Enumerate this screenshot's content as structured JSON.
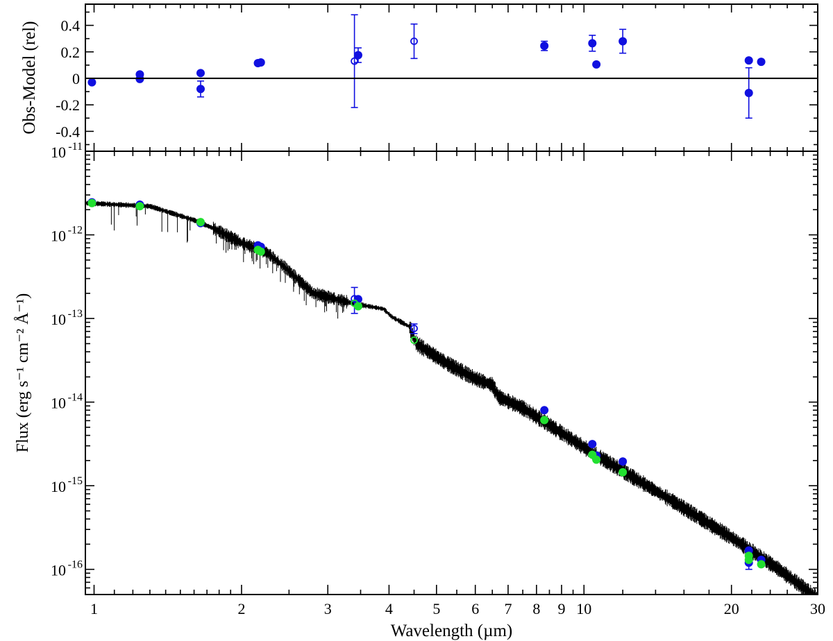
{
  "chart_data": [
    {
      "type": "scatter",
      "panel": "residuals",
      "ylabel": "Obs-Model (rel)",
      "xscale": "log",
      "xlim": [
        0.96,
        30
      ],
      "ylim": [
        -0.55,
        0.56
      ],
      "yticks": [
        0.4,
        0.2,
        0,
        -0.2,
        -0.4
      ],
      "ytick_labels": [
        "0.4",
        "0.2",
        "0",
        "-0.2",
        "-0.4"
      ],
      "zero_line": true,
      "grid": false,
      "color": "#1010e0",
      "points": [
        {
          "x": 0.99,
          "y": -0.03
        },
        {
          "x": 1.24,
          "y": 0.03
        },
        {
          "x": 1.24,
          "y": -0.005
        },
        {
          "x": 1.65,
          "y": 0.04
        },
        {
          "x": 1.65,
          "y": -0.08,
          "err": 0.06
        },
        {
          "x": 2.16,
          "y": 0.115
        },
        {
          "x": 2.19,
          "y": 0.12
        },
        {
          "x": 3.4,
          "y": 0.13,
          "err": 0.35,
          "open": true
        },
        {
          "x": 3.46,
          "y": 0.175,
          "err": 0.055
        },
        {
          "x": 4.5,
          "y": 0.28,
          "err": 0.13,
          "open": true
        },
        {
          "x": 8.3,
          "y": 0.245,
          "err": 0.035
        },
        {
          "x": 10.4,
          "y": 0.265,
          "err": 0.06
        },
        {
          "x": 10.6,
          "y": 0.105
        },
        {
          "x": 12.0,
          "y": 0.28,
          "err": 0.09
        },
        {
          "x": 21.7,
          "y": 0.135
        },
        {
          "x": 21.7,
          "y": -0.11,
          "err": 0.19
        },
        {
          "x": 23.0,
          "y": 0.125
        }
      ]
    },
    {
      "type": "line",
      "panel": "sed",
      "xlabel": "Wavelength (µm)",
      "ylabel": "Flux (erg s⁻¹ cm⁻² Å⁻¹)",
      "xscale": "log",
      "yscale": "log",
      "xlim": [
        0.96,
        30
      ],
      "ylim": [
        5e-17,
        1e-11
      ],
      "xticks": [
        1,
        2,
        3,
        4,
        5,
        6,
        7,
        8,
        9,
        10,
        20,
        30
      ],
      "xtick_labels": [
        "1",
        "2",
        "3",
        "4",
        "5",
        "6",
        "7",
        "8",
        "9",
        "10",
        "20",
        "30"
      ],
      "ytick_mantissa": "10",
      "ytick_exponents": [
        "-11",
        "-12",
        "-13",
        "-14",
        "-15",
        "-16"
      ],
      "grid": false,
      "series": [
        {
          "kind": "model",
          "color": "#000000",
          "x": [
            0.96,
            1.3,
            1.6,
            1.75,
            2.0,
            2.25,
            2.45,
            2.8,
            3.4,
            3.9,
            4.05,
            4.4,
            4.55,
            5.2,
            6.0,
            6.5,
            6.7,
            7.5,
            8.3,
            10.5,
            15.0,
            20.0,
            25.0,
            30.0
          ],
          "y": [
            2.4e-12,
            2.2e-12,
            1.5e-12,
            1.2e-12,
            8e-13,
            6.2e-13,
            4.1e-13,
            2e-13,
            1.5e-13,
            1.3e-13,
            1.05e-13,
            8e-14,
            5e-14,
            3e-14,
            1.9e-14,
            1.6e-14,
            1.15e-14,
            8.5e-15,
            5.8e-15,
            2.4e-15,
            6.8e-16,
            2.4e-16,
            1e-16,
            4.5e-17
          ]
        },
        {
          "kind": "observed",
          "color": "#1010e0",
          "points": [
            {
              "x": 0.99,
              "y": 2.45e-12
            },
            {
              "x": 1.24,
              "y": 2.3e-12
            },
            {
              "x": 1.65,
              "y": 1.38e-12
            },
            {
              "x": 2.16,
              "y": 7.5e-13
            },
            {
              "x": 2.19,
              "y": 7.2e-13
            },
            {
              "x": 3.4,
              "y": 1.72e-13,
              "err_lo": 1.15e-13,
              "err_hi": 2.35e-13,
              "open": true
            },
            {
              "x": 3.46,
              "y": 1.7e-13
            },
            {
              "x": 4.5,
              "y": 7.6e-14,
              "err_lo": 6.6e-14,
              "err_hi": 8.6e-14,
              "open": true
            },
            {
              "x": 8.3,
              "y": 8e-15
            },
            {
              "x": 10.4,
              "y": 3.15e-15
            },
            {
              "x": 10.6,
              "y": 2.3e-15
            },
            {
              "x": 12.0,
              "y": 1.95e-15
            },
            {
              "x": 21.7,
              "y": 1.68e-16
            },
            {
              "x": 21.7,
              "y": 1.2e-16,
              "err_lo": 1e-16,
              "err_hi": 1.45e-16
            },
            {
              "x": 23.0,
              "y": 1.3e-16
            }
          ]
        },
        {
          "kind": "synthetic",
          "color": "#22e030",
          "points": [
            {
              "x": 0.99,
              "y": 2.4e-12
            },
            {
              "x": 1.24,
              "y": 2.2e-12
            },
            {
              "x": 1.65,
              "y": 1.42e-12
            },
            {
              "x": 2.16,
              "y": 6.6e-13
            },
            {
              "x": 2.19,
              "y": 6.3e-13
            },
            {
              "x": 3.4,
              "y": 1.52e-13,
              "open": true
            },
            {
              "x": 3.46,
              "y": 1.4e-13
            },
            {
              "x": 4.5,
              "y": 5.5e-14,
              "open": true
            },
            {
              "x": 8.3,
              "y": 6.1e-15
            },
            {
              "x": 10.4,
              "y": 2.35e-15
            },
            {
              "x": 10.6,
              "y": 2.05e-15
            },
            {
              "x": 12.0,
              "y": 1.45e-15
            },
            {
              "x": 21.7,
              "y": 1.45e-16
            },
            {
              "x": 21.7,
              "y": 1.3e-16
            },
            {
              "x": 23.0,
              "y": 1.15e-16
            }
          ]
        }
      ]
    }
  ]
}
